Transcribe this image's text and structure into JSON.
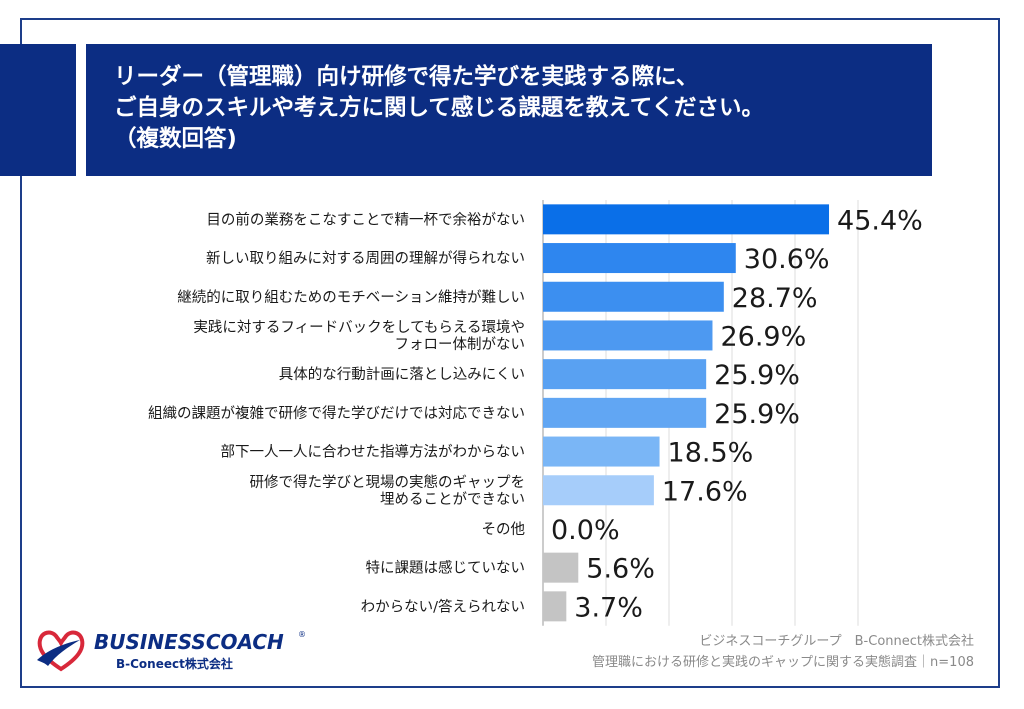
{
  "header": {
    "lines": [
      "リーダー（管理職）向け研修で得た学びを実践する際に、",
      "ご自身のスキルや考え方に関して感じる課題を教えてください。",
      "（複数回答)"
    ]
  },
  "chart_data": {
    "type": "bar",
    "orientation": "horizontal",
    "xlim": [
      0,
      50
    ],
    "grid": true,
    "categories": [
      [
        "目の前の業務をこなすことで精一杯で余裕がない"
      ],
      [
        "新しい取り組みに対する周囲の理解が得られない"
      ],
      [
        "継続的に取り組むためのモチベーション維持が難しい"
      ],
      [
        "実践に対するフィードバックをしてもらえる環境や",
        "フォロー体制がない"
      ],
      [
        "具体的な行動計画に落とし込みにくい"
      ],
      [
        "組織の課題が複雑で研修で得た学びだけでは対応できない"
      ],
      [
        "部下一人一人に合わせた指導方法がわからない"
      ],
      [
        "研修で得た学びと現場の実態のギャップを",
        "埋めることができない"
      ],
      [
        "その他"
      ],
      [
        "特に課題は感じていない"
      ],
      [
        "わからない/答えられない"
      ]
    ],
    "values": [
      45.4,
      30.6,
      28.7,
      26.9,
      25.9,
      25.9,
      18.5,
      17.6,
      0.0,
      5.6,
      3.7
    ],
    "value_labels": [
      "45.4%",
      "30.6%",
      "28.7%",
      "26.9%",
      "25.9%",
      "25.9%",
      "18.5%",
      "17.6%",
      "0.0%",
      "5.6%",
      "3.7%"
    ],
    "colors": [
      "#0a6fe8",
      "#2e86ef",
      "#3c8ff0",
      "#4d99f1",
      "#59a1f2",
      "#61a6f3",
      "#7ab6f6",
      "#a6cdfa",
      "#c4c4c4",
      "#c4c4c4",
      "#c4c4c4"
    ]
  },
  "logo": {
    "name": "BUSINESSCOACH",
    "registered": "®",
    "sub": "B-Coneect株式会社",
    "colors": {
      "navy": "#0c2d83",
      "red": "#d8283a"
    }
  },
  "source": {
    "line1": "ビジネスコーチグループ　B-Connect株式会社",
    "line2": "管理職における研修と実践のギャップに関する実態調査｜n=108"
  }
}
